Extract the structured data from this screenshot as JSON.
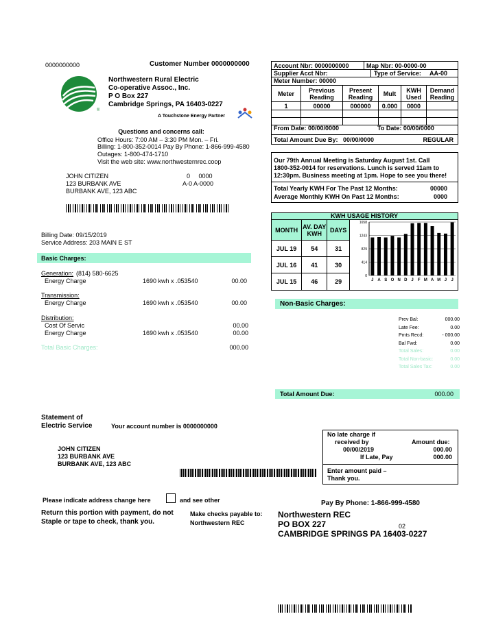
{
  "header": {
    "account_ref": "0000000000",
    "customer_number": "Customer Number 0000000000"
  },
  "company": {
    "lines": [
      "Northwestern Rural Electric",
      "Co-operative Assoc., Inc.",
      "P O Box 227",
      "Cambridge Springs, PA 16403-0227"
    ],
    "tagline": "A Touchstone Energy Partner"
  },
  "contact": {
    "heading": "Questions and concerns call:",
    "lines": [
      "Office Hours: 7:00 AM – 3:30 PM Mon. – Fri.",
      "Billing: 1-800-352-0014 Pay By Phone: 1-866-999-4580",
      "Outages: 1-800-474-1710",
      "Visit the web site: www.northwesternrec.coop"
    ]
  },
  "customer": {
    "address": [
      "JOHN CITIZEN",
      "123 BURBANK AVE",
      "BURBANK AVE, 123 ABC"
    ],
    "codes": [
      "0     0000",
      "A-0 A-0000"
    ]
  },
  "billing": {
    "date": "Billing Date: 09/15/2019",
    "service_address": "Service Address: 203 MAIN E ST"
  },
  "basic_charges": {
    "heading": "Basic Charges:",
    "sections": [
      {
        "label": "Generation:",
        "phone": "(814) 580-6625",
        "items": [
          {
            "name": "Energy Charge",
            "calc": "1690 kwh x .053540",
            "amount": "00.00"
          }
        ]
      },
      {
        "label": "Transmission:",
        "items": [
          {
            "name": "Energy Charge",
            "calc": "1690 kwh x .053540",
            "amount": "00.00"
          }
        ]
      },
      {
        "label": "Distribution:",
        "items": [
          {
            "name": "Cost Of Servic",
            "amount": "00.00"
          },
          {
            "name": "Energy Charge",
            "calc": "1690 kwh x .053540",
            "amount": "00.00"
          }
        ]
      }
    ],
    "total_label": "Total Basic Charges:",
    "total": "000.00"
  },
  "account": {
    "account_nbr": "Account Nbr: 0000000000",
    "map_nbr": "Map Nbr: 00-0000-00",
    "supplier": "Supplier Acct Nbr:",
    "service_type": "Type of Service:",
    "service_code": "AA-00",
    "meter_number": "Meter Number: 00000",
    "meter_table": {
      "headers": [
        "Meter",
        "Previous Reading",
        "Present Reading",
        "Mult",
        "KWH Used",
        "Demand Reading"
      ],
      "row": [
        "1",
        "00000",
        "000000",
        "0.000",
        "0000"
      ]
    },
    "from_date": "From Date: 00/00/0000",
    "to_date": "To Date: 00/00/0000",
    "due_by": "Total Amount Due By:   00/00/0000",
    "bill_type": "REGULAR"
  },
  "message": {
    "lines": [
      "Our 79th Annual Meeting is Saturday August 1st. Call",
      "1800-352-0014 for reservations. Lunch is served 11am to",
      "12:30pm. Business meeting at 1pm. Hope to see you there!"
    ],
    "yearly_label": "Total Yearly KWH For The Past 12 Months:",
    "yearly": "00000",
    "monthly_label": "Average Monthly KWH On Past 12 Months:",
    "monthly": "0000"
  },
  "usage_history": {
    "title": "KWH USAGE HISTORY",
    "headers": [
      "MONTH",
      "AV. DAY KWH",
      "DAYS"
    ],
    "rows": [
      [
        "JUL 19",
        "54",
        "31"
      ],
      [
        "JUL 16",
        "41",
        "30"
      ],
      [
        "JUL 15",
        "46",
        "29"
      ]
    ],
    "chart": {
      "type": "bar",
      "categories": [
        "J",
        "A",
        "S",
        "O",
        "N",
        "D",
        "J",
        "F",
        "M",
        "A",
        "M",
        "J",
        "J"
      ],
      "values": [
        1180,
        1190,
        1180,
        1230,
        1180,
        1290,
        1620,
        1630,
        1630,
        1530,
        1320,
        1300,
        1650
      ],
      "ylim": [
        0,
        1658
      ],
      "yticks": [
        0,
        414,
        829,
        1243,
        1658
      ],
      "color": "#000000"
    }
  },
  "non_basic": {
    "heading": "Non-Basic Charges:",
    "items": [
      {
        "label": "Prev Bal:",
        "amount": "000.00"
      },
      {
        "label": "Late Fee:",
        "amount": "0.00"
      },
      {
        "label": "Pmts Recd:",
        "amount": "- 000.00"
      },
      {
        "label": "Bal Fwd:",
        "amount": "0.00"
      },
      {
        "label": "Total Sales:",
        "amount": "0.00"
      },
      {
        "label": "Total Non-basic:",
        "amount": "0.00"
      },
      {
        "label": "Total Sales Tax:",
        "amount": "0.00"
      }
    ]
  },
  "total_due": {
    "label": "Total Amount Due:",
    "amount": "000.00"
  },
  "stub": {
    "statement": [
      "Statement of",
      "Electric Service"
    ],
    "account_line": "Your account number is 0000000000",
    "late_box": {
      "no_late": [
        "No late charge if",
        "received by",
        "00/00/2019"
      ],
      "amount_due_label": "Amount due:",
      "amount_due": "000.00",
      "if_late_label": "If Late, Pay",
      "if_late": "000.00",
      "enter": [
        "Enter amount paid –",
        "Thank you."
      ]
    },
    "address": [
      "JOHN CITIZEN",
      "123 BURBANK AVE",
      "BURBANK AVE, 123 ABC"
    ],
    "address_change": "Please indicate address change here",
    "see_other": "and see other",
    "return": [
      "Return this portion with payment, do not",
      "Staple or tape to check, thank you."
    ],
    "payable": [
      "Make checks payable to:",
      "Northwestern REC"
    ],
    "pay_by_phone": "Pay By Phone: 1-866-999-4580",
    "remit": [
      "Northwestern REC",
      "PO BOX 227",
      "CAMBRIDGE SPRINGS PA 16403-0227"
    ],
    "remit_code": "02"
  }
}
